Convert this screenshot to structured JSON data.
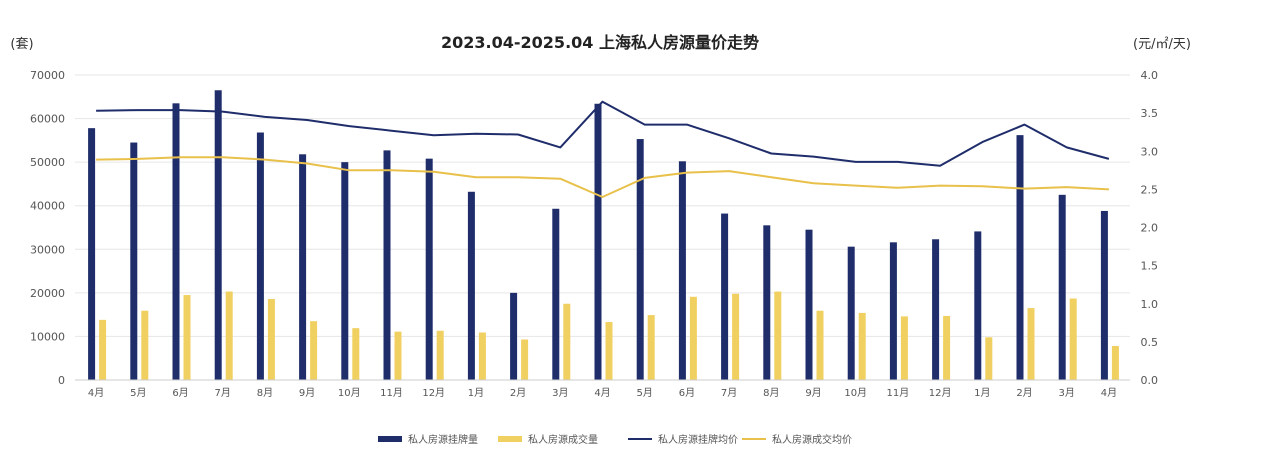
{
  "chart_data": {
    "type": "bar",
    "title": "2023.04-2025.04 上海私人房源量价走势",
    "y_left_unit": "(套)",
    "y_right_unit": "(元/㎡/天)",
    "ylim_left": [
      0,
      70000
    ],
    "ylim_right": [
      0,
      4.0
    ],
    "y_left_ticks": [
      "0",
      "10000",
      "20000",
      "30000",
      "40000",
      "50000",
      "60000",
      "70000"
    ],
    "y_right_ticks": [
      "0.0",
      "0.5",
      "1.0",
      "1.5",
      "2.0",
      "2.5",
      "3.0",
      "3.5",
      "4.0"
    ],
    "categories": [
      "4月",
      "5月",
      "6月",
      "7月",
      "8月",
      "9月",
      "10月",
      "11月",
      "12月",
      "1月",
      "2月",
      "3月",
      "4月",
      "5月",
      "6月",
      "7月",
      "8月",
      "9月",
      "10月",
      "11月",
      "12月",
      "1月",
      "2月",
      "3月",
      "4月"
    ],
    "legend_position": "bottom",
    "grid": "horizontal",
    "series": [
      {
        "name": "私人房源挂牌量",
        "kind": "bar",
        "axis": "left",
        "color": "#1f2d6b",
        "values": [
          57800,
          54500,
          63500,
          66500,
          56800,
          51800,
          50000,
          52700,
          50800,
          43200,
          20000,
          39300,
          63400,
          55300,
          50200,
          38200,
          35500,
          34500,
          30600,
          31600,
          32300,
          34100,
          56200,
          42500,
          38800
        ]
      },
      {
        "name": "私人房源成交量",
        "kind": "bar",
        "axis": "left",
        "color": "#f0d060",
        "values": [
          13800,
          15900,
          19500,
          20300,
          18600,
          13500,
          11900,
          11100,
          11300,
          10900,
          9300,
          17500,
          13300,
          14900,
          19100,
          19800,
          20300,
          15900,
          15400,
          14600,
          14700,
          9800,
          16500,
          18700,
          7800
        ]
      },
      {
        "name": "私人房源挂牌均价",
        "kind": "line",
        "axis": "right",
        "color": "#1f2d6b",
        "values": [
          3.53,
          3.54,
          3.54,
          3.52,
          3.45,
          3.41,
          3.33,
          3.27,
          3.21,
          3.23,
          3.22,
          3.05,
          3.65,
          3.35,
          3.35,
          3.17,
          2.97,
          2.93,
          2.86,
          2.86,
          2.81,
          3.12,
          3.35,
          3.05,
          2.9
        ]
      },
      {
        "name": "私人房源成交均价",
        "kind": "line",
        "axis": "right",
        "color": "#e8c04a",
        "values": [
          2.89,
          2.9,
          2.92,
          2.92,
          2.89,
          2.84,
          2.75,
          2.75,
          2.73,
          2.66,
          2.66,
          2.64,
          2.4,
          2.65,
          2.72,
          2.74,
          2.66,
          2.58,
          2.55,
          2.52,
          2.55,
          2.54,
          2.51,
          2.53,
          2.5
        ]
      }
    ]
  }
}
